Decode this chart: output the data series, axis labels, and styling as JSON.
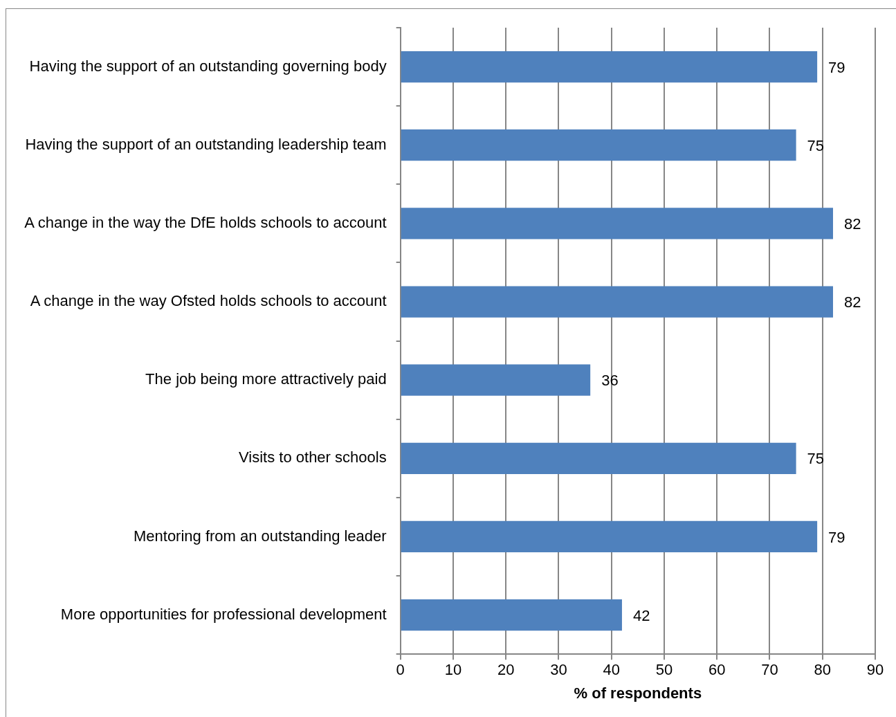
{
  "chart_data": {
    "type": "bar",
    "orientation": "horizontal",
    "xlabel": "% of respondents",
    "categories": [
      "Having the support of an outstanding governing body",
      "Having the support of an outstanding leadership team",
      "A change in the way the DfE holds schools to account",
      "A change in the way Ofsted holds schools to account",
      "The job being more attractively paid",
      "Visits to other schools",
      "Mentoring from an outstanding leader",
      "More opportunities for professional development"
    ],
    "values": [
      79,
      75,
      82,
      82,
      36,
      75,
      79,
      42
    ],
    "color": "#4f81bd",
    "xlim": [
      0,
      90
    ],
    "xticks": [
      0,
      10,
      20,
      30,
      40,
      50,
      60,
      70,
      80,
      90
    ],
    "grid": "x",
    "legend": false,
    "data_labels": true
  }
}
